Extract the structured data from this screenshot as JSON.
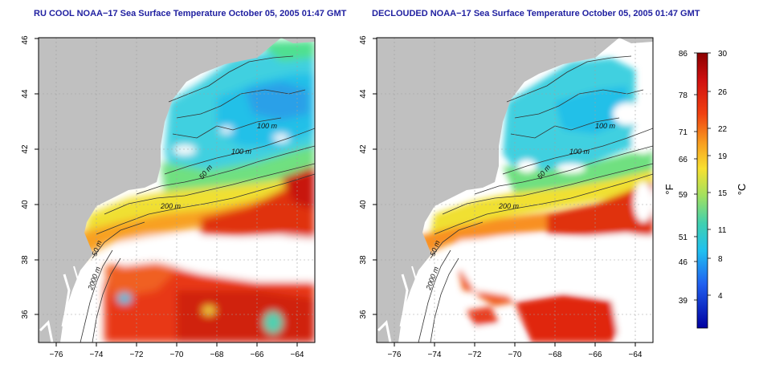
{
  "left_panel": {
    "title": "RU COOL NOAA−17 Sea Surface Temperature October 05, 2005 01:47 GMT",
    "lon_ticks": [
      "−76",
      "−74",
      "−72",
      "−70",
      "−68",
      "−66",
      "−64"
    ],
    "lat_ticks": [
      "36",
      "38",
      "40",
      "42",
      "44",
      "46"
    ],
    "contour_labels": [
      "100 m",
      "100 m",
      "50 m",
      "200 m",
      "50 m",
      "2000 m"
    ]
  },
  "right_panel": {
    "title": "DECLOUDED NOAA−17 Sea Surface Temperature October 05, 2005 01:47 GMT",
    "lon_ticks": [
      "−76",
      "−74",
      "−72",
      "−70",
      "−68",
      "−66",
      "−64"
    ],
    "lat_ticks": [
      "36",
      "38",
      "40",
      "42",
      "44",
      "46"
    ],
    "contour_labels": [
      "100 m",
      "100 m",
      "50 m",
      "200 m",
      "50 m",
      "2000 m"
    ]
  },
  "colorbar": {
    "fahrenheit_label": "°F",
    "celsius_label": "°C",
    "fahrenheit_ticks": [
      "86",
      "78",
      "71",
      "66",
      "59",
      "51",
      "46",
      "39"
    ],
    "celsius_ticks": [
      "30",
      "26",
      "22",
      "19",
      "15",
      "11",
      "8",
      "4"
    ]
  },
  "colors": {
    "land": "#c0c0c0",
    "cloud": "#ffffff",
    "title": "#1f1fa0",
    "grid": "#a0a0a0"
  }
}
